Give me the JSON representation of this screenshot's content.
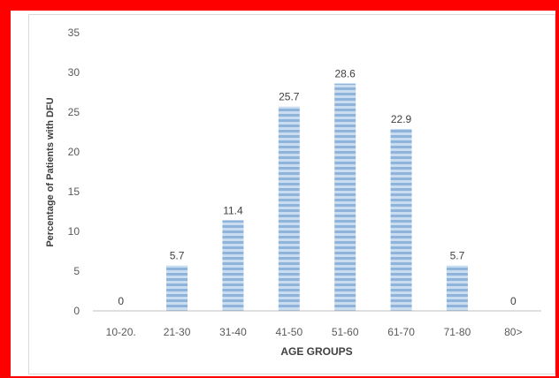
{
  "chart_data": {
    "type": "bar",
    "title": "",
    "xlabel": "AGE GROUPS",
    "ylabel": "Percentage of Patients with DFU",
    "categories": [
      "10-20.",
      "21-30",
      "31-40",
      "41-50",
      "51-60",
      "61-70",
      "71-80",
      "80>"
    ],
    "values": [
      0,
      5.7,
      11.4,
      25.7,
      28.6,
      22.9,
      5.7,
      0
    ],
    "data_labels": [
      "0",
      "5.7",
      "11.4",
      "25.7",
      "28.6",
      "22.9",
      "5.7",
      "0"
    ],
    "ylim": [
      0,
      35
    ],
    "yticks": [
      "0",
      "5",
      "10",
      "15",
      "20",
      "25",
      "30",
      "35"
    ],
    "grid": false,
    "legend": "none",
    "colors": {
      "frame": "#ff0000",
      "bar_light": "#c9dcf0",
      "bar_dark": "#8fb4dc",
      "axis": "#bfbfbf",
      "text": "#595959"
    }
  }
}
